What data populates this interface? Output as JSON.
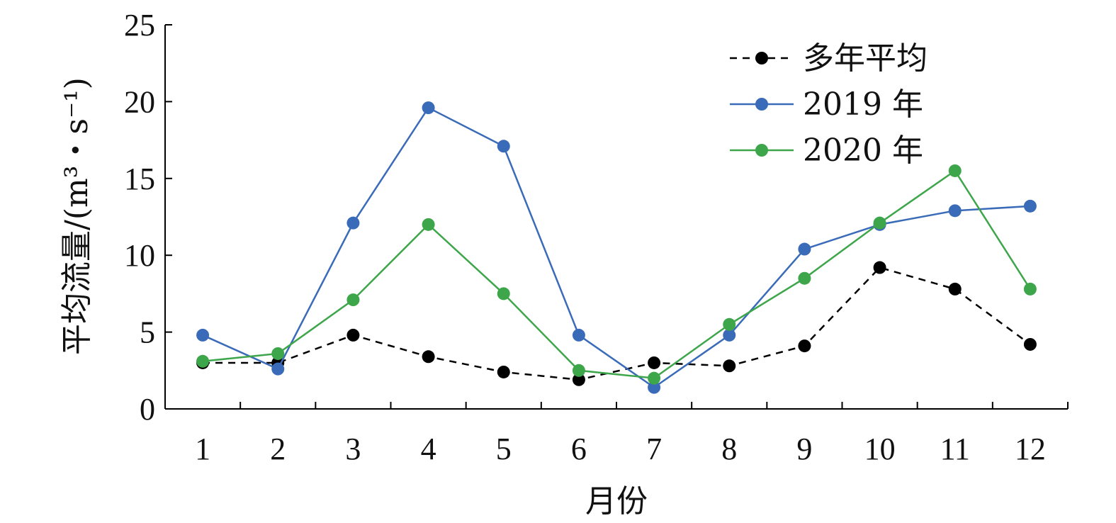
{
  "chart_data": {
    "type": "line",
    "xlabel": "月份",
    "ylabel": "平均流量/(m³・s⁻¹)",
    "ylim": [
      0,
      25
    ],
    "yticks": [
      0,
      5,
      10,
      15,
      20,
      25
    ],
    "categories": [
      "1",
      "2",
      "3",
      "4",
      "5",
      "6",
      "7",
      "8",
      "9",
      "10",
      "11",
      "12"
    ],
    "grid": false,
    "legend_position": "top-right",
    "series": [
      {
        "name": "多年平均",
        "color": "#000000",
        "line_style": "dashed",
        "values": [
          3.0,
          3.0,
          4.8,
          3.4,
          2.4,
          1.9,
          3.0,
          2.8,
          4.1,
          9.2,
          7.8,
          4.2
        ]
      },
      {
        "name": "2019 年",
        "color": "#3a6bb8",
        "line_style": "solid",
        "values": [
          4.8,
          2.6,
          12.1,
          19.6,
          17.1,
          4.8,
          1.4,
          4.8,
          10.4,
          12.0,
          12.9,
          13.2
        ]
      },
      {
        "name": "2020 年",
        "color": "#3ea64a",
        "line_style": "solid",
        "values": [
          3.1,
          3.6,
          7.1,
          12.0,
          7.5,
          2.5,
          2.0,
          5.5,
          8.5,
          12.1,
          15.5,
          7.8
        ]
      }
    ]
  }
}
